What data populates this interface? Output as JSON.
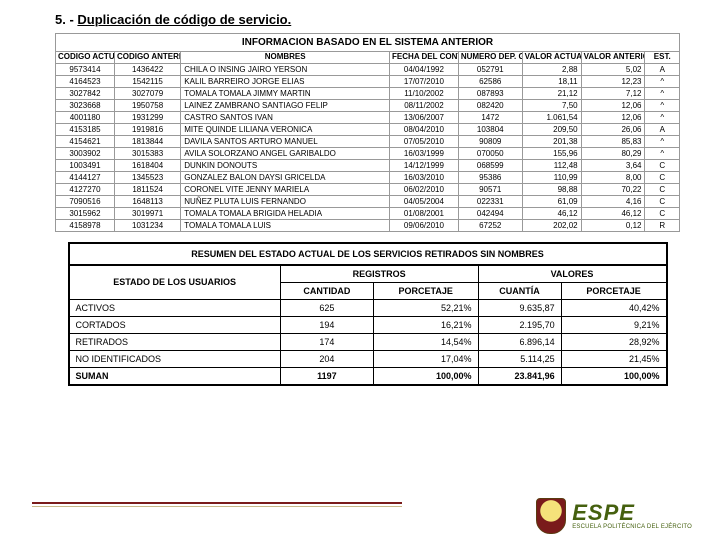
{
  "section_title_prefix": "5. - ",
  "section_title": "Duplicación de código de servicio.",
  "sistema": {
    "title": "INFORMACION BASADO EN EL SISTEMA ANTERIOR",
    "columns": [
      "CODIGO ACTUAL",
      "CODIGO ANTERIOR (FOX)",
      "NOMBRES",
      "FECHA DEL CONTRATO",
      "NUMERO DEP. GAR.",
      "VALOR ACTUAL",
      "VALOR ANTERIOR (FOX)",
      "EST."
    ],
    "col_widths": [
      "48px",
      "54px",
      "170px",
      "56px",
      "52px",
      "48px",
      "52px",
      "28px"
    ],
    "rows": [
      [
        "9573414",
        "1436422",
        "CHILA O INSING JAIRO YERSON",
        "04/04/1992",
        "052791",
        "2,88",
        "5,02",
        "A"
      ],
      [
        "4164523",
        "1542115",
        "KALIL BARREIRO JORGE ELIAS",
        "17/07/2010",
        "62586",
        "18,11",
        "12,23",
        "^"
      ],
      [
        "3027842",
        "3027079",
        "TOMALA TOMALA JIMMY MARTIN",
        "11/10/2002",
        "087893",
        "21,12",
        "7,12",
        "^"
      ],
      [
        "3023668",
        "1950758",
        "LAINEZ ZAMBRANO SANTIAGO FELIP",
        "08/11/2002",
        "082420",
        "7,50",
        "12,06",
        "^"
      ],
      [
        "4001180",
        "1931299",
        "CASTRO SANTOS IVAN",
        "13/06/2007",
        "1472",
        "1.061,54",
        "12,06",
        "^"
      ],
      [
        "4153185",
        "1919816",
        "MITE QUINDE LILIANA VERONICA",
        "08/04/2010",
        "103804",
        "209,50",
        "26,06",
        "A"
      ],
      [
        "4154621",
        "1813844",
        "DAVILA SANTOS ARTURO MANUEL",
        "07/05/2010",
        "90809",
        "201,38",
        "85,83",
        "^"
      ],
      [
        "3003902",
        "3015383",
        "AVILA SOLORZANO ANGEL GARIBALDO",
        "16/03/1999",
        "070050",
        "155,96",
        "80,29",
        "^"
      ],
      [
        "1003491",
        "1618404",
        "DUNKIN DONOUTS",
        "14/12/1999",
        "068599",
        "112,48",
        "3,64",
        "C"
      ],
      [
        "4144127",
        "1345523",
        "GONZALEZ BALON DAYSI GRICELDA",
        "16/03/2010",
        "95386",
        "110,99",
        "8,00",
        "C"
      ],
      [
        "4127270",
        "1811524",
        "CORONEL VITE JENNY MARIELA",
        "06/02/2010",
        "90571",
        "98,88",
        "70,22",
        "C"
      ],
      [
        "7090516",
        "1648113",
        "NUÑEZ PLUTA LUIS FERNANDO",
        "04/05/2004",
        "022331",
        "61,09",
        "4,16",
        "C"
      ],
      [
        "3015962",
        "3019971",
        "TOMALA TOMALA BRIGIDA HELADIA",
        "01/08/2001",
        "042494",
        "46,12",
        "46,12",
        "C"
      ],
      [
        "4158978",
        "1031234",
        "TOMALA TOMALA LUIS",
        "09/06/2010",
        "67252",
        "202,02",
        "0,12",
        "R"
      ]
    ]
  },
  "resumen": {
    "title": "RESUMEN DEL ESTADO ACTUAL DE LOS SERVICIOS RETIRADOS SIN NOMBRES",
    "group1": "REGISTROS",
    "group2": "VALORES",
    "col_labels": [
      "ESTADO DE LOS USUARIOS",
      "CANTIDAD",
      "PORCETAJE",
      "CUANTÍA",
      "PORCETAJE"
    ],
    "rows": [
      [
        "ACTIVOS",
        "625",
        "52,21%",
        "9.635,87",
        "40,42%"
      ],
      [
        "CORTADOS",
        "194",
        "16,21%",
        "2.195,70",
        "9,21%"
      ],
      [
        "RETIRADOS",
        "174",
        "14,54%",
        "6.896,14",
        "28,92%"
      ],
      [
        "NO IDENTIFICADOS",
        "204",
        "17,04%",
        "5.114,25",
        "21,45%"
      ]
    ],
    "sum": [
      "SUMAN",
      "1197",
      "100,00%",
      "23.841,96",
      "100,00%"
    ]
  },
  "logo": {
    "main": "ESPE",
    "sub": "ESCUELA POLITÉCNICA DEL EJÉRCITO"
  },
  "colors": {
    "accent": "#7a1b1b",
    "olive": "#45600f"
  }
}
